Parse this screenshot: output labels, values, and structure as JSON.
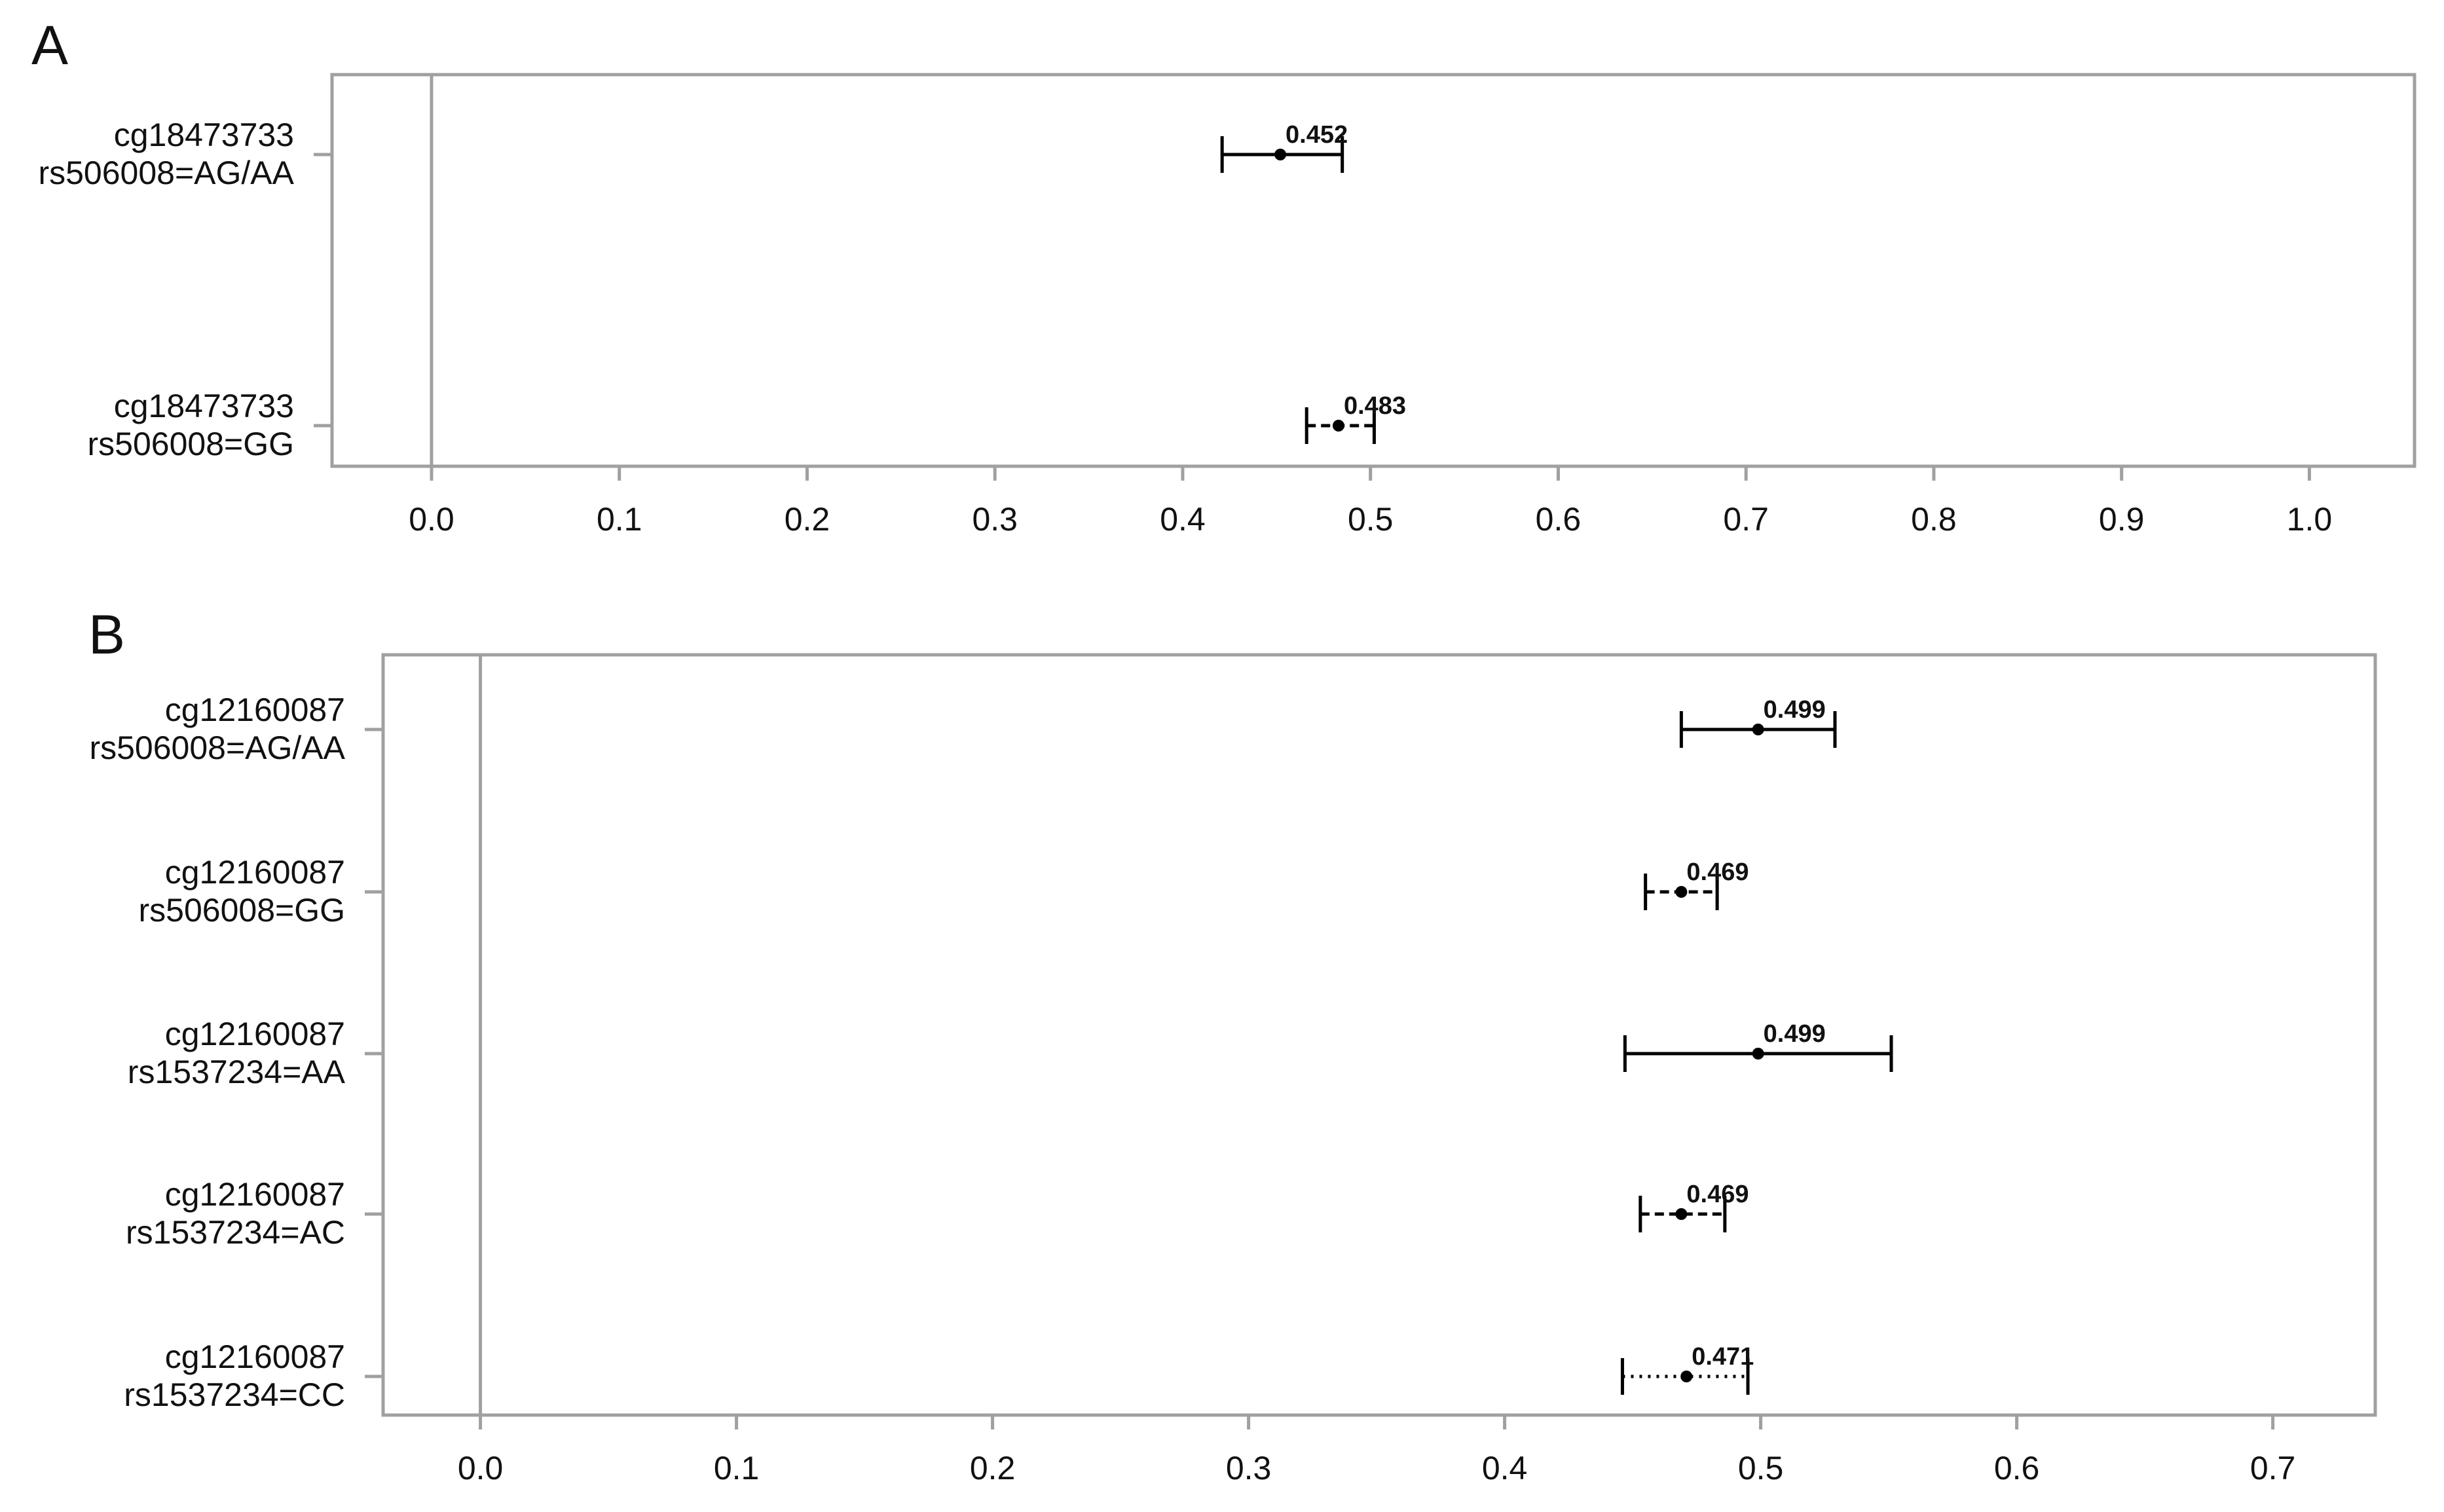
{
  "chart_data": [
    {
      "type": "errorbar",
      "panel_label": "A",
      "categories": [
        [
          "cg18473733",
          "rs506008=AG/AA"
        ],
        [
          "cg18473733",
          "rs506008=GG"
        ]
      ],
      "values": [
        0.452,
        0.483
      ],
      "lower": [
        0.421,
        0.466
      ],
      "upper": [
        0.485,
        0.502
      ],
      "line_styles": [
        "solid",
        "dashed"
      ],
      "color": "#000000",
      "reference_line": 0,
      "xlim": [
        -0.053,
        1.056
      ],
      "xticks": [
        {
          "value": 0,
          "label": "0.0"
        },
        0.1,
        0.2,
        0.3,
        0.4,
        0.5,
        0.6,
        0.7,
        0.8,
        0.9,
        {
          "value": 1,
          "label": "1.0"
        }
      ]
    },
    {
      "type": "errorbar",
      "panel_label": "B",
      "categories": [
        [
          "cg12160087",
          "rs506008=AG/AA"
        ],
        [
          "cg12160087",
          "rs506008=GG"
        ],
        [
          "cg12160087",
          "rs1537234=AA"
        ],
        [
          "cg12160087",
          "rs1537234=AC"
        ],
        [
          "cg12160087",
          "rs1537234=CC"
        ]
      ],
      "values": [
        0.499,
        0.469,
        0.499,
        0.469,
        0.471
      ],
      "lower": [
        0.469,
        0.455,
        0.447,
        0.453,
        0.446
      ],
      "upper": [
        0.529,
        0.483,
        0.551,
        0.486,
        0.495
      ],
      "line_styles": [
        "solid",
        "dashed",
        "solid",
        "dashed",
        "dotted"
      ],
      "color": "#000000",
      "reference_line": 0,
      "xlim": [
        -0.038,
        0.74
      ],
      "xticks": [
        {
          "value": 0,
          "label": "0.0"
        },
        0.1,
        0.2,
        0.3,
        0.4,
        0.5,
        0.6,
        0.7
      ]
    }
  ]
}
